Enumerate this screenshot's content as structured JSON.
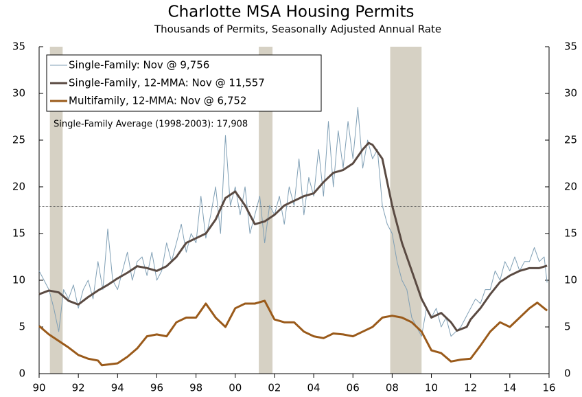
{
  "chart_data": {
    "type": "line",
    "title": "Charlotte MSA Housing Permits",
    "subtitle": "Thousands of Permits, Seasonally Adjusted Annual Rate",
    "annotation": "Single-Family Average (1998-2003): 17,908",
    "average_line": 17.908,
    "shaded_periods": [
      [
        1990.55,
        1991.2
      ],
      [
        2001.2,
        2001.9
      ],
      [
        2007.9,
        2009.5
      ]
    ],
    "shade_color": "#d6d1c4",
    "xlim": [
      1990,
      2016
    ],
    "xticks": [
      {
        "value": 1990,
        "label": "90"
      },
      {
        "value": 1992,
        "label": "92"
      },
      {
        "value": 1994,
        "label": "94"
      },
      {
        "value": 1996,
        "label": "96"
      },
      {
        "value": 1998,
        "label": "98"
      },
      {
        "value": 2000,
        "label": "00"
      },
      {
        "value": 2002,
        "label": "02"
      },
      {
        "value": 2004,
        "label": "04"
      },
      {
        "value": 2006,
        "label": "06"
      },
      {
        "value": 2008,
        "label": "08"
      },
      {
        "value": 2010,
        "label": "10"
      },
      {
        "value": 2012,
        "label": "12"
      },
      {
        "value": 2014,
        "label": "14"
      },
      {
        "value": 2016,
        "label": "16"
      }
    ],
    "ylim": [
      0,
      35
    ],
    "yticks": [
      0,
      5,
      10,
      15,
      20,
      25,
      30,
      35
    ],
    "y2lim": [
      0,
      35
    ],
    "y2ticks": [
      0,
      5,
      10,
      15,
      20,
      25,
      30,
      35
    ],
    "legend": "upper left",
    "series": [
      {
        "name": "Single-Family: Nov @ 9,756",
        "color": "#7f9fb5",
        "width": 1,
        "x": [
          1990,
          1990.25,
          1990.5,
          1990.75,
          1991,
          1991.25,
          1991.5,
          1991.75,
          1992,
          1992.25,
          1992.5,
          1992.75,
          1993,
          1993.25,
          1993.5,
          1993.75,
          1994,
          1994.25,
          1994.5,
          1994.75,
          1995,
          1995.25,
          1995.5,
          1995.75,
          1996,
          1996.25,
          1996.5,
          1996.75,
          1997,
          1997.25,
          1997.5,
          1997.75,
          1998,
          1998.25,
          1998.5,
          1998.75,
          1999,
          1999.25,
          1999.5,
          1999.75,
          2000,
          2000.25,
          2000.5,
          2000.75,
          2001,
          2001.25,
          2001.5,
          2001.75,
          2002,
          2002.25,
          2002.5,
          2002.75,
          2003,
          2003.25,
          2003.5,
          2003.75,
          2004,
          2004.25,
          2004.5,
          2004.75,
          2005,
          2005.25,
          2005.5,
          2005.75,
          2006,
          2006.25,
          2006.5,
          2006.75,
          2007,
          2007.25,
          2007.5,
          2007.75,
          2008,
          2008.25,
          2008.5,
          2008.75,
          2009,
          2009.25,
          2009.5,
          2009.75,
          2010,
          2010.25,
          2010.5,
          2010.75,
          2011,
          2011.25,
          2011.5,
          2011.75,
          2012,
          2012.25,
          2012.5,
          2012.75,
          2013,
          2013.25,
          2013.5,
          2013.75,
          2014,
          2014.25,
          2014.5,
          2014.75,
          2015,
          2015.25,
          2015.5,
          2015.75,
          2015.9
        ],
        "values": [
          11,
          10,
          9,
          7,
          4.5,
          9,
          8,
          9.5,
          7,
          9,
          10,
          8,
          12,
          9,
          15.5,
          10,
          9,
          11,
          13,
          10,
          12,
          12.5,
          10.5,
          13,
          10,
          11,
          14,
          12,
          14,
          16,
          13,
          15,
          14,
          19,
          14.5,
          17,
          20,
          15,
          25.5,
          18,
          20,
          17,
          20,
          15,
          17,
          19,
          14,
          18,
          17,
          19,
          16,
          20,
          18,
          23,
          17,
          21,
          19,
          24,
          19,
          27,
          20,
          26,
          22,
          27,
          23,
          28.5,
          22,
          25,
          23,
          24,
          18,
          16,
          15,
          12,
          10,
          9,
          6,
          5,
          4,
          7,
          6,
          7,
          5,
          6,
          4,
          4.5,
          5,
          6,
          7,
          8,
          7.5,
          9,
          9,
          11,
          10,
          12,
          11,
          12.5,
          11,
          12,
          12,
          13.5,
          12,
          12.5,
          9.756
        ]
      },
      {
        "name": "Single-Family, 12-MMA: Nov @ 11,557",
        "color": "#5a4a42",
        "width": 3,
        "x": [
          1990,
          1990.5,
          1991,
          1991.5,
          1992,
          1992.5,
          1993,
          1993.5,
          1994,
          1994.5,
          1995,
          1995.5,
          1996,
          1996.5,
          1997,
          1997.5,
          1998,
          1998.5,
          1999,
          1999.5,
          2000,
          2000.5,
          2001,
          2001.5,
          2002,
          2002.5,
          2003,
          2003.5,
          2004,
          2004.5,
          2005,
          2005.5,
          2006,
          2006.5,
          2006.8,
          2007,
          2007.5,
          2008,
          2008.5,
          2009,
          2009.5,
          2010,
          2010.5,
          2011,
          2011.3,
          2011.8,
          2012,
          2012.5,
          2013,
          2013.5,
          2014,
          2014.5,
          2015,
          2015.5,
          2015.9
        ],
        "values": [
          8.5,
          8.9,
          8.7,
          7.8,
          7.4,
          8.2,
          8.9,
          9.5,
          10.2,
          10.8,
          11.5,
          11.3,
          11,
          11.5,
          12.5,
          14,
          14.5,
          15,
          16.5,
          18.8,
          19.5,
          18,
          16,
          16.3,
          17,
          18,
          18.5,
          19,
          19.3,
          20.5,
          21.5,
          21.8,
          22.5,
          24,
          24.7,
          24.5,
          23,
          18,
          14,
          11,
          8,
          6,
          6.5,
          5.5,
          4.6,
          5,
          5.8,
          7,
          8.5,
          9.8,
          10.5,
          11,
          11.3,
          11.3,
          11.557
        ]
      },
      {
        "name": "Multifamily, 12-MMA: Nov @ 6,752",
        "color": "#9a5a1a",
        "width": 3,
        "x": [
          1990,
          1990.5,
          1991,
          1991.5,
          1992,
          1992.5,
          1993,
          1993.2,
          1994,
          1994.5,
          1995,
          1995.5,
          1996,
          1996.5,
          1997,
          1997.5,
          1998,
          1998.5,
          1999,
          1999.5,
          2000,
          2000.5,
          2001,
          2001.5,
          2002,
          2002.5,
          2003,
          2003.5,
          2004,
          2004.5,
          2005,
          2005.5,
          2006,
          2006.5,
          2007,
          2007.5,
          2008,
          2008.5,
          2009,
          2009.5,
          2010,
          2010.5,
          2011,
          2011.5,
          2012,
          2012.5,
          2013,
          2013.5,
          2014,
          2014.5,
          2015,
          2015.4,
          2015.9
        ],
        "values": [
          5.1,
          4.2,
          3.5,
          2.8,
          2,
          1.6,
          1.4,
          0.9,
          1.1,
          1.8,
          2.7,
          4,
          4.2,
          4,
          5.5,
          6,
          6,
          7.5,
          6,
          5,
          7,
          7.5,
          7.5,
          7.8,
          5.8,
          5.5,
          5.5,
          4.5,
          4,
          3.8,
          4.3,
          4.2,
          4,
          4.5,
          5,
          6,
          6.2,
          6,
          5.5,
          4.5,
          2.5,
          2.2,
          1.3,
          1.5,
          1.6,
          3,
          4.5,
          5.5,
          5,
          6,
          7,
          7.6,
          6.752
        ]
      }
    ]
  }
}
